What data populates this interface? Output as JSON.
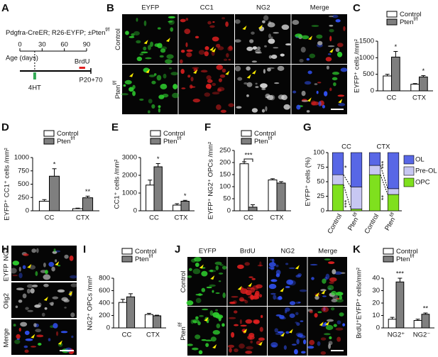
{
  "panel_A": {
    "panel": "A",
    "genotype": {
      "text": "Pdgfra-CreER; R26-EYFP; ±Pten",
      "sup": "f/f"
    },
    "xlabel": "Age (days)",
    "xlim": [
      0,
      90
    ],
    "xticks": [
      0,
      30,
      60,
      90
    ],
    "brdu_label": "BrdU",
    "tamoxifen_label": "4HT",
    "end_label": "P20+70"
  },
  "panel_B": {
    "panel": "B",
    "columns": [
      {
        "text": "EYFP",
        "color": "#2fd12f"
      },
      {
        "text": "CC1",
        "color": "#e02020"
      },
      {
        "text": "NG2",
        "color": "#dddddd"
      },
      {
        "text": "Merge",
        "color": "#444444"
      }
    ],
    "rows": [
      {
        "text": "Control"
      },
      {
        "text": "Pten",
        "sup": "f/f"
      }
    ]
  },
  "panel_H": {
    "panel": "H",
    "labels": [
      {
        "text": "EYFP",
        "color": "#2fd12f"
      },
      {
        "text": "NG2",
        "color": "#e02020"
      },
      {
        "text": "Olig2",
        "color": "#3355ff"
      },
      {
        "text": "Merge",
        "color": "#222222"
      }
    ]
  },
  "panel_J": {
    "panel": "J",
    "columns": [
      {
        "text": "EYFP",
        "color": "#2fd12f"
      },
      {
        "text": "BrdU",
        "color": "#e02020"
      },
      {
        "text": "NG2",
        "color": "#3355ff"
      },
      {
        "text": "Merge",
        "color": "#222222"
      }
    ],
    "rows": [
      {
        "text": "Control"
      },
      {
        "text": "Pten",
        "sup": "f/f"
      }
    ]
  },
  "chart_data": [
    {
      "panel": "C",
      "type": "bar",
      "ylabel": "EYFP⁺ cells /mm²",
      "categories": [
        "CC",
        "CTX"
      ],
      "series": [
        {
          "name": "Control",
          "color": "#ffffff",
          "values": [
            450,
            200
          ],
          "errors": [
            50,
            20
          ]
        },
        {
          "name": "Pten",
          "name_sup": "f/f",
          "color": "#7f7f7f",
          "values": [
            1020,
            420
          ],
          "errors": [
            170,
            40
          ]
        }
      ],
      "ylim": [
        0,
        1500
      ],
      "yticks": [
        0,
        500,
        1000,
        1500
      ],
      "annotations": [
        {
          "label": "*",
          "series": 1,
          "index": 0
        },
        {
          "label": "*",
          "series": 1,
          "index": 1
        }
      ]
    },
    {
      "panel": "D",
      "type": "bar",
      "ylabel": "EYFP⁺ CC1⁺ cells /mm²",
      "categories": [
        "CC",
        "CTX"
      ],
      "series": [
        {
          "name": "Control",
          "color": "#ffffff",
          "values": [
            180,
            40
          ],
          "errors": [
            30,
            10
          ]
        },
        {
          "name": "Pten",
          "name_sup": "f/f",
          "color": "#7f7f7f",
          "values": [
            650,
            245
          ],
          "errors": [
            140,
            30
          ]
        }
      ],
      "ylim": [
        0,
        1000
      ],
      "yticks": [
        0,
        250,
        500,
        750,
        1000
      ],
      "annotations": [
        {
          "label": "*",
          "series": 1,
          "index": 0
        },
        {
          "label": "**",
          "series": 1,
          "index": 1
        }
      ]
    },
    {
      "panel": "E",
      "type": "bar",
      "ylabel": "CC1⁺ cells /mm²",
      "categories": [
        "CC",
        "CTX"
      ],
      "series": [
        {
          "name": "Control",
          "color": "#ffffff",
          "values": [
            1450,
            320
          ],
          "errors": [
            280,
            80
          ]
        },
        {
          "name": "Pten",
          "name_sup": "f/f",
          "color": "#7f7f7f",
          "values": [
            2480,
            540
          ],
          "errors": [
            180,
            50
          ]
        }
      ],
      "ylim": [
        0,
        3000
      ],
      "yticks": [
        0,
        1000,
        2000,
        3000
      ],
      "annotations": [
        {
          "label": "*",
          "series": 1,
          "index": 0
        },
        {
          "label": "*",
          "series": 1,
          "index": 1
        }
      ]
    },
    {
      "panel": "F",
      "type": "bar",
      "ylabel": "EYFP⁺ NG2⁺ OPCs /mm²",
      "categories": [
        "CC",
        "CTX"
      ],
      "series": [
        {
          "name": "Control",
          "color": "#ffffff",
          "values": [
            195,
            128
          ],
          "errors": [
            8,
            5
          ]
        },
        {
          "name": "Pten",
          "name_sup": "f/f",
          "color": "#7f7f7f",
          "values": [
            15,
            115
          ],
          "errors": [
            10,
            6
          ]
        }
      ],
      "ylim": [
        0,
        250
      ],
      "yticks": [
        0,
        50,
        100,
        150,
        200,
        250
      ],
      "annotations": [
        {
          "label": "***",
          "index": 0,
          "bracket": true
        }
      ]
    },
    {
      "panel": "G",
      "type": "stacked_bar",
      "ylabel": "EYFP⁺ cells (%)",
      "groups": [
        "CC",
        "CTX"
      ],
      "categories": [
        {
          "text": "Control"
        },
        {
          "text": "Pten",
          "sup": "f/f"
        },
        {
          "text": "Control"
        },
        {
          "text": "Pten",
          "sup": "f/f"
        }
      ],
      "series": [
        {
          "name": "OPC",
          "color": "#7fe01e",
          "values": [
            45,
            3,
            62,
            28
          ],
          "errors": [
            5,
            1,
            5,
            2
          ]
        },
        {
          "name": "Pre-OL",
          "color": "#c7c7f2",
          "values": [
            17,
            38,
            16,
            10
          ]
        },
        {
          "name": "OL",
          "color": "#5867e6",
          "values": [
            38,
            59,
            22,
            62
          ]
        }
      ],
      "ylim": [
        0,
        100
      ],
      "yticks": [
        0,
        25,
        50,
        75,
        100
      ],
      "annotations": [
        {
          "label": "*",
          "group": 0,
          "series": 2
        },
        {
          "label": "***",
          "group": 0,
          "series": 0
        },
        {
          "label": "***",
          "group": 1,
          "series": 2
        },
        {
          "label": "**",
          "group": 1,
          "series": 0
        }
      ]
    },
    {
      "panel": "I",
      "type": "bar",
      "ylabel": "NG2⁺ OPCs /mm²",
      "categories": [
        "CC",
        "CTX"
      ],
      "series": [
        {
          "name": "Control",
          "color": "#ffffff",
          "values": [
            410,
            215
          ],
          "errors": [
            50,
            20
          ]
        },
        {
          "name": "Pten",
          "name_sup": "f/f",
          "color": "#7f7f7f",
          "values": [
            500,
            195
          ],
          "errors": [
            50,
            10
          ]
        }
      ],
      "ylim": [
        0,
        800
      ],
      "yticks": [
        0,
        200,
        400,
        600,
        800
      ],
      "annotations": []
    },
    {
      "panel": "K",
      "type": "bar",
      "ylabel": "BrdU⁺EYFP⁺ cells/mm²",
      "categories": [
        "NG2⁺",
        "NG2⁻"
      ],
      "series": [
        {
          "name": "Control",
          "color": "#ffffff",
          "values": [
            7,
            6
          ],
          "errors": [
            1.5,
            1
          ]
        },
        {
          "name": "Pten",
          "name_sup": "f/f",
          "color": "#7f7f7f",
          "values": [
            37,
            11
          ],
          "errors": [
            3,
            1
          ]
        }
      ],
      "ylim": [
        0,
        40
      ],
      "yticks": [
        0,
        10,
        20,
        30,
        40
      ],
      "annotations": [
        {
          "label": "***",
          "series": 1,
          "index": 0
        },
        {
          "label": "**",
          "series": 1,
          "index": 1
        }
      ]
    }
  ]
}
